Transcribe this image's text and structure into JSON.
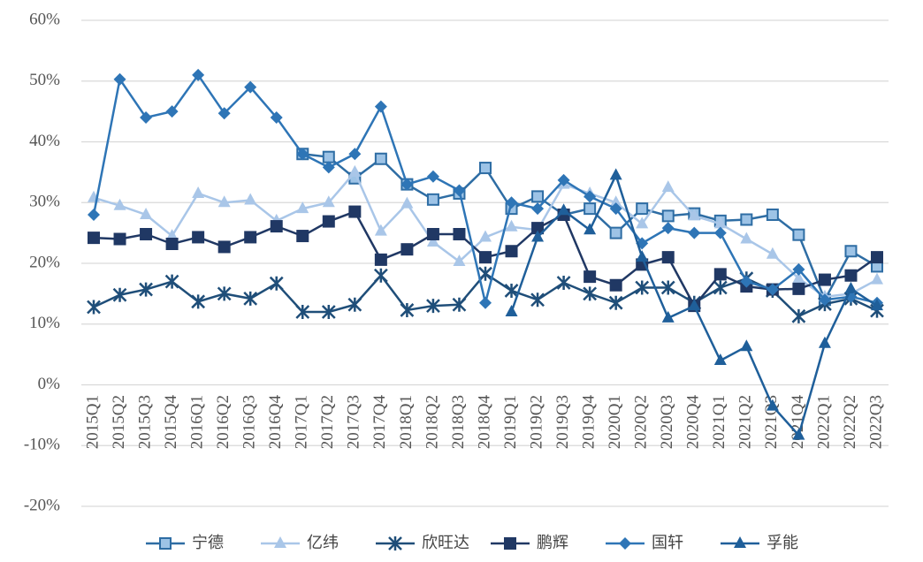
{
  "chart_data": {
    "type": "line",
    "categories": [
      "2015Q1",
      "2015Q2",
      "2015Q3",
      "2015Q4",
      "2016Q1",
      "2016Q2",
      "2016Q3",
      "2016Q4",
      "2017Q1",
      "2017Q2",
      "2017Q3",
      "2017Q4",
      "2018Q1",
      "2018Q2",
      "2018Q3",
      "2018Q4",
      "2019Q1",
      "2019Q2",
      "2019Q3",
      "2019Q4",
      "2020Q1",
      "2020Q2",
      "2020Q3",
      "2020Q4",
      "2021Q1",
      "2021Q2",
      "2021Q3",
      "2021Q4",
      "2022Q1",
      "2022Q2",
      "2022Q3"
    ],
    "ylim": [
      -20,
      60
    ],
    "yticks": [
      {
        "value": -20,
        "label": "-20%"
      },
      {
        "value": -10,
        "label": "-10%"
      },
      {
        "value": 0,
        "label": "0%"
      },
      {
        "value": 10,
        "label": "10%"
      },
      {
        "value": 20,
        "label": "20%"
      },
      {
        "value": 30,
        "label": "30%"
      },
      {
        "value": 40,
        "label": "40%"
      },
      {
        "value": 50,
        "label": "50%"
      },
      {
        "value": 60,
        "label": "60%"
      }
    ],
    "grid": true,
    "legend": "bottom",
    "series": [
      {
        "name": "宁德",
        "color": "#2e6da4",
        "marker": "square-open",
        "values": [
          null,
          null,
          null,
          null,
          null,
          null,
          null,
          null,
          38,
          37.5,
          34,
          37.2,
          33,
          30.5,
          31.5,
          35.7,
          29,
          31,
          28,
          29,
          25,
          29,
          27.8,
          28.2,
          27,
          27.2,
          28,
          24.7,
          14,
          22,
          19.5
        ]
      },
      {
        "name": "亿纬",
        "color": "#a9c6e8",
        "marker": "triangle",
        "values": [
          30.8,
          29.5,
          28,
          24.5,
          31.5,
          30,
          30.4,
          27,
          29,
          30,
          35,
          25.3,
          29.8,
          23.5,
          20.3,
          24.3,
          26,
          25.5,
          33,
          31.5,
          30,
          26.5,
          32.5,
          27.8,
          26.5,
          24,
          21.5,
          17.5,
          14.5,
          15,
          17.3
        ]
      },
      {
        "name": "欣旺达",
        "color": "#1f4e79",
        "marker": "star",
        "values": [
          12.8,
          14.8,
          15.7,
          17,
          13.7,
          15,
          14.2,
          16.7,
          12,
          12,
          13.2,
          18,
          12.3,
          13,
          13.2,
          18.3,
          15.5,
          14,
          16.8,
          15,
          13.5,
          16,
          16,
          13.5,
          16,
          17.5,
          15.5,
          11.3,
          13.3,
          14.2,
          12.2
        ]
      },
      {
        "name": "鹏辉",
        "color": "#203864",
        "marker": "square",
        "values": [
          24.2,
          24,
          24.8,
          23.2,
          24.3,
          22.7,
          24.3,
          26.1,
          24.5,
          26.9,
          28.5,
          20.6,
          22.3,
          24.8,
          24.8,
          21,
          22,
          25.8,
          28,
          17.8,
          16.4,
          19.8,
          21,
          13,
          18.2,
          16.2,
          15.7,
          15.8,
          17.3,
          18,
          21
        ]
      },
      {
        "name": "国轩",
        "color": "#2e75b6",
        "marker": "diamond",
        "values": [
          28,
          50.3,
          44,
          45,
          51,
          44.7,
          49,
          44,
          38,
          35.8,
          38,
          45.8,
          33,
          34.3,
          32,
          13.5,
          30,
          29,
          33.7,
          31,
          29,
          23.3,
          25.8,
          25,
          25,
          17,
          15.7,
          19,
          14,
          14.5,
          13.5
        ]
      },
      {
        "name": "孚能",
        "color": "#1f5f9a",
        "marker": "triangle",
        "values": [
          null,
          null,
          null,
          null,
          null,
          null,
          null,
          null,
          null,
          null,
          null,
          null,
          null,
          null,
          null,
          null,
          12,
          24.3,
          28.7,
          25.5,
          34.5,
          21,
          11,
          13,
          4,
          6.3,
          -3.5,
          -8.3,
          6.8,
          15.8,
          13
        ]
      }
    ]
  }
}
